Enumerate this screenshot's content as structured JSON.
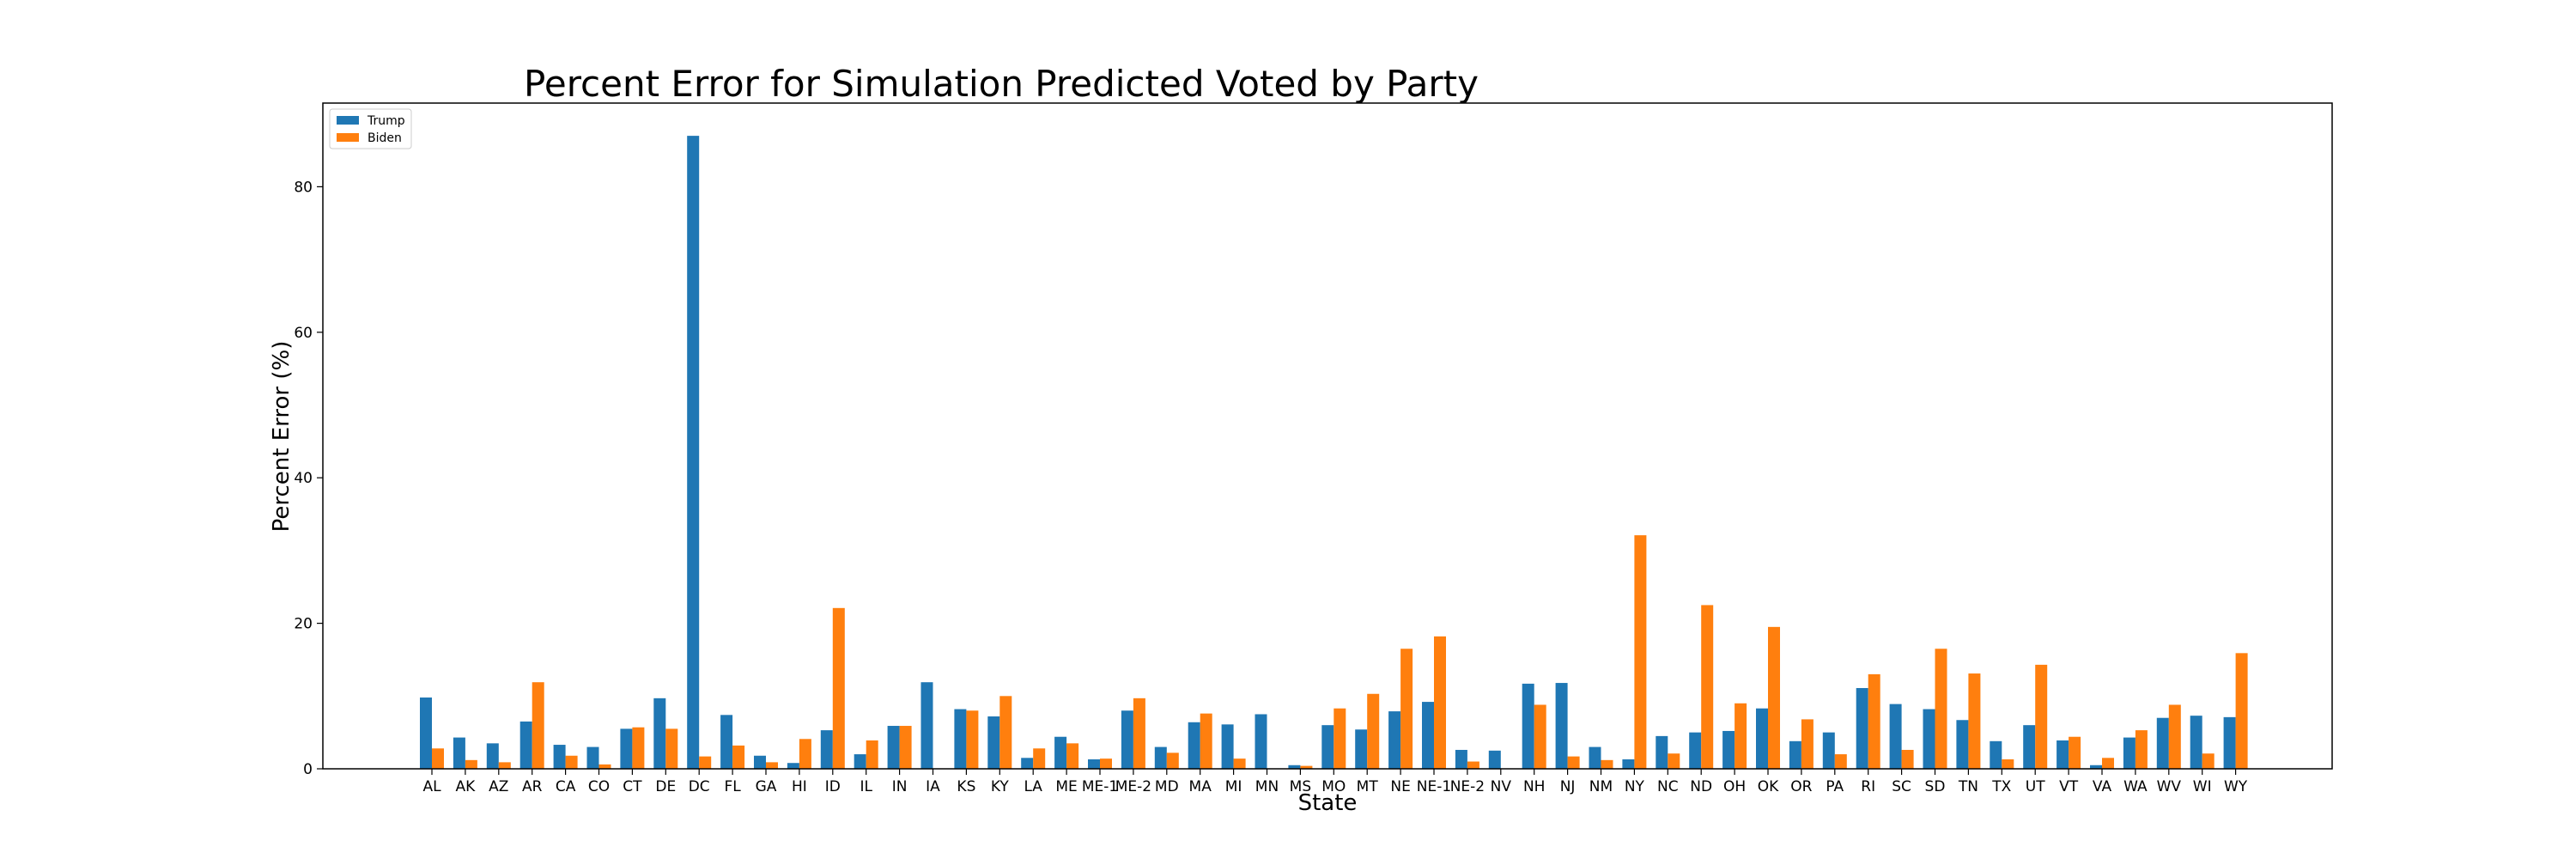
{
  "chart_data": {
    "type": "bar",
    "title": "Percent Error for Simulation Predicted Voted by Party",
    "xlabel": "State",
    "ylabel": "Percent Error (%)",
    "ylim": [
      0,
      91.5
    ],
    "yticks": [
      0,
      20,
      40,
      60,
      80
    ],
    "grid": false,
    "legend_position": "top-left",
    "categories": [
      "AL",
      "AK",
      "AZ",
      "AR",
      "CA",
      "CO",
      "CT",
      "DE",
      "DC",
      "FL",
      "GA",
      "HI",
      "ID",
      "IL",
      "IN",
      "IA",
      "KS",
      "KY",
      "LA",
      "ME",
      "ME-1",
      "ME-2",
      "MD",
      "MA",
      "MI",
      "MN",
      "MS",
      "MO",
      "MT",
      "NE",
      "NE-1",
      "NE-2",
      "NV",
      "NH",
      "NJ",
      "NM",
      "NY",
      "NC",
      "ND",
      "OH",
      "OK",
      "OR",
      "PA",
      "RI",
      "SC",
      "SD",
      "TN",
      "TX",
      "UT",
      "VT",
      "VA",
      "WA",
      "WV",
      "WI",
      "WY"
    ],
    "series": [
      {
        "name": "Trump",
        "color": "#1f77b4",
        "values": [
          9.8,
          4.3,
          3.5,
          6.5,
          3.3,
          3.0,
          5.5,
          9.7,
          87.0,
          7.4,
          1.8,
          0.8,
          5.3,
          2.0,
          5.9,
          11.9,
          8.2,
          7.2,
          1.5,
          4.4,
          1.3,
          8.0,
          3.0,
          6.4,
          6.1,
          7.5,
          0.5,
          6.0,
          5.4,
          7.9,
          9.2,
          2.6,
          2.5,
          11.7,
          11.8,
          3.0,
          1.3,
          4.5,
          5.0,
          5.2,
          8.3,
          3.8,
          5.0,
          11.1,
          8.9,
          8.2,
          6.7,
          3.8,
          6.0,
          3.9,
          0.5,
          4.3,
          7.0,
          7.3,
          7.1
        ]
      },
      {
        "name": "Biden",
        "color": "#ff7f0e",
        "values": [
          2.8,
          1.2,
          0.9,
          11.9,
          1.8,
          0.6,
          5.7,
          5.5,
          1.7,
          3.2,
          0.9,
          4.1,
          22.1,
          3.9,
          5.9,
          0.0,
          8.0,
          10.0,
          2.8,
          3.5,
          1.4,
          9.7,
          2.2,
          7.6,
          1.4,
          0.0,
          0.4,
          8.3,
          10.3,
          16.5,
          18.2,
          1.0,
          0.0,
          8.8,
          1.7,
          1.2,
          32.1,
          2.1,
          22.5,
          9.0,
          19.5,
          6.8,
          2.0,
          13.0,
          2.6,
          16.5,
          13.1,
          1.3,
          14.3,
          4.4,
          1.5,
          5.3,
          8.8,
          2.1,
          15.9
        ]
      }
    ]
  }
}
